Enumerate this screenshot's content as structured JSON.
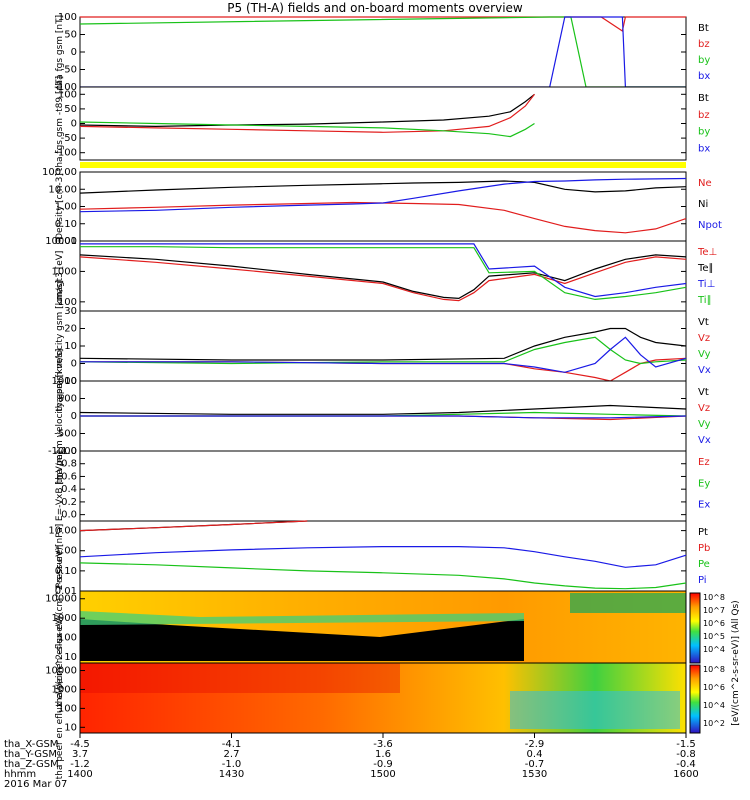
{
  "title": "P5 (TH-A) fields and on-board moments overview",
  "footer": {
    "date": "2016 Mar 07",
    "row_labels": [
      "tha_X-GSM",
      "tha_Y-GSM",
      "tha_Z-GSM",
      "hhmm"
    ],
    "rows": [
      [
        "-4.5",
        "-4.1",
        "-3.6",
        "-2.9",
        "-1.5"
      ],
      [
        "3.7",
        "2.7",
        "1.6",
        "0.4",
        "-0.8"
      ],
      [
        "-1.2",
        "-1.0",
        "-0.9",
        "-0.7",
        "-0.4"
      ],
      [
        "1400",
        "1430",
        "1500",
        "1530",
        "1600"
      ]
    ]
  },
  "colorbar": {
    "label": "[eV/(cm^2-s-sr-eV)] (All Qs)",
    "ticks_upper": [
      "10^8",
      "10^7",
      "10^6",
      "10^5",
      "10^4"
    ],
    "ticks_lower": [
      "10^8",
      "10^6",
      "10^4",
      "10^2"
    ]
  },
  "colors": {
    "black": "#000000",
    "red": "#e11d1d",
    "green": "#19c219",
    "blue": "#1a1ae6",
    "yellow": "#ffff00"
  },
  "chart_data": [
    {
      "id": "fgs",
      "type": "line",
      "ylabel": "tha fgs gsm [nT]",
      "ylim": [
        -100,
        100
      ],
      "ticks": [
        "100",
        "50",
        "0",
        "-50",
        "-100"
      ],
      "x_hours": [
        14.0,
        15.55,
        15.6,
        15.62,
        15.67,
        15.72,
        15.79,
        15.8,
        16.0
      ],
      "series": [
        {
          "name": "Bt",
          "color": "#000000",
          "values": [
            null,
            null,
            null,
            null,
            null,
            null,
            null,
            null,
            null
          ]
        },
        {
          "name": "bz",
          "color": "#e11d1d",
          "values": [
            100,
            100,
            100,
            100,
            100,
            100,
            60,
            100,
            100
          ]
        },
        {
          "name": "by",
          "color": "#19c219",
          "values": [
            80,
            100,
            100,
            100,
            -100,
            -100,
            -100,
            -100,
            -100
          ]
        },
        {
          "name": "bx",
          "color": "#1a1ae6",
          "values": [
            -100,
            -100,
            100,
            100,
            100,
            100,
            100,
            -100,
            -100
          ]
        }
      ]
    },
    {
      "id": "fgs-t89",
      "type": "line",
      "ylabel": "tha fgs gsm -t89 [nT]",
      "ylim": [
        -125,
        125
      ],
      "ticks": [
        "100",
        "50",
        "0",
        "-50",
        "-100"
      ],
      "x_hours": [
        14.0,
        14.25,
        14.5,
        14.75,
        15.0,
        15.2,
        15.35,
        15.42,
        15.47,
        15.5
      ],
      "series": [
        {
          "name": "Bt",
          "color": "#000000",
          "values": [
            -5,
            -10,
            -5,
            -2,
            5,
            12,
            25,
            40,
            75,
            100
          ]
        },
        {
          "name": "bz",
          "color": "#e11d1d",
          "values": [
            -10,
            -15,
            -20,
            -25,
            -30,
            -25,
            -10,
            20,
            60,
            100
          ]
        },
        {
          "name": "by",
          "color": "#19c219",
          "values": [
            5,
            0,
            -5,
            -10,
            -15,
            -25,
            -35,
            -45,
            -20,
            0
          ]
        },
        {
          "name": "bx",
          "color": "#1a1ae6",
          "values": [
            null,
            null,
            null,
            null,
            null,
            null,
            null,
            null,
            null,
            null
          ]
        }
      ]
    },
    {
      "id": "density",
      "type": "line",
      "ylabel": "Density [cm-3]",
      "log": true,
      "ylim": [
        0.01,
        100
      ],
      "ticks": [
        "100.00",
        "10.00",
        "1.00",
        "0.10",
        "0.01"
      ],
      "x_hours": [
        14.0,
        14.25,
        14.5,
        14.75,
        14.9,
        15.0,
        15.1,
        15.25,
        15.4,
        15.5,
        15.6,
        15.7,
        15.8,
        15.9,
        16.0
      ],
      "series": [
        {
          "name": "Ne",
          "color": "#e11d1d",
          "values": [
            0.7,
            0.9,
            1.2,
            1.5,
            1.7,
            1.6,
            1.5,
            1.3,
            0.6,
            0.2,
            0.07,
            0.04,
            0.03,
            0.05,
            0.2
          ]
        },
        {
          "name": "Ni",
          "color": "#000000",
          "values": [
            6,
            9,
            13,
            17,
            19,
            21,
            23,
            25,
            30,
            25,
            10,
            7,
            8,
            12,
            14
          ]
        },
        {
          "name": "Npot",
          "color": "#1a1ae6",
          "values": [
            0.5,
            0.6,
            0.9,
            1.2,
            1.4,
            1.6,
            3,
            8,
            20,
            28,
            30,
            35,
            38,
            40,
            42
          ]
        }
      ]
    },
    {
      "id": "temperature",
      "type": "line",
      "ylabel": "magt3 [eV]",
      "log": true,
      "ylim": [
        50,
        10000
      ],
      "ticks": [
        "10000",
        "1000",
        "100"
      ],
      "x_hours": [
        14.0,
        14.25,
        14.5,
        14.75,
        15.0,
        15.1,
        15.2,
        15.25,
        15.3,
        15.35,
        15.5,
        15.6,
        15.7,
        15.8,
        15.9,
        16.0
      ],
      "series": [
        {
          "name": "Te⊥",
          "color": "#e11d1d",
          "values": [
            3000,
            2000,
            1200,
            700,
            400,
            200,
            120,
            110,
            200,
            500,
            800,
            400,
            900,
            2000,
            3000,
            2500
          ]
        },
        {
          "name": "Te∥",
          "color": "#000000",
          "values": [
            3500,
            2500,
            1500,
            800,
            450,
            220,
            140,
            130,
            250,
            700,
            900,
            500,
            1200,
            2500,
            3500,
            3000
          ]
        },
        {
          "name": "Ti⊥",
          "color": "#1a1ae6",
          "values": [
            8000,
            8000,
            8000,
            8000,
            8000,
            8000,
            8000,
            8000,
            8000,
            1200,
            1500,
            300,
            150,
            200,
            300,
            400
          ]
        },
        {
          "name": "Ti∥",
          "color": "#19c219",
          "values": [
            6500,
            6500,
            6000,
            6000,
            6000,
            6000,
            6000,
            6000,
            6000,
            900,
            1000,
            200,
            120,
            150,
            200,
            300
          ]
        }
      ]
    },
    {
      "id": "peim-velocity",
      "type": "line",
      "ylabel": "tha peim velocity gsm [km/s]",
      "ylim": [
        -10,
        30
      ],
      "ticks": [
        "30",
        "20",
        "10",
        "0",
        "-10"
      ],
      "x_hours": [
        14.0,
        14.5,
        15.0,
        15.4,
        15.5,
        15.6,
        15.7,
        15.75,
        15.8,
        15.85,
        15.9,
        16.0
      ],
      "series": [
        {
          "name": "Vt",
          "color": "#000000",
          "values": [
            3,
            2,
            2,
            3,
            10,
            15,
            18,
            20,
            20,
            15,
            12,
            10
          ]
        },
        {
          "name": "Vz",
          "color": "#e11d1d",
          "values": [
            1,
            1,
            0,
            0,
            -3,
            -5,
            -8,
            -10,
            -5,
            0,
            2,
            3
          ]
        },
        {
          "name": "Vy",
          "color": "#19c219",
          "values": [
            1,
            0,
            1,
            1,
            8,
            12,
            15,
            8,
            2,
            0,
            1,
            2
          ]
        },
        {
          "name": "Vx",
          "color": "#1a1ae6",
          "values": [
            1,
            1,
            0,
            0,
            -2,
            -5,
            0,
            8,
            15,
            5,
            -2,
            3
          ]
        }
      ]
    },
    {
      "id": "peem-velocity",
      "type": "line",
      "ylabel": "tha peem velocity gsm [km/s]",
      "ylim": [
        -1000,
        1000
      ],
      "ticks": [
        "1000",
        "500",
        "0",
        "-500",
        "-1000"
      ],
      "x_hours": [
        14.0,
        14.5,
        15.0,
        15.25,
        15.5,
        15.75,
        16.0
      ],
      "series": [
        {
          "name": "Vt",
          "color": "#000000",
          "values": [
            100,
            50,
            50,
            100,
            200,
            300,
            200
          ]
        },
        {
          "name": "Vz",
          "color": "#e11d1d",
          "values": [
            0,
            0,
            0,
            0,
            -50,
            -100,
            0
          ]
        },
        {
          "name": "Vy",
          "color": "#19c219",
          "values": [
            0,
            0,
            0,
            50,
            100,
            50,
            0
          ]
        },
        {
          "name": "Vx",
          "color": "#1a1ae6",
          "values": [
            0,
            0,
            0,
            0,
            -50,
            -50,
            0
          ]
        }
      ]
    },
    {
      "id": "efield",
      "type": "line",
      "ylabel": "E=-VxB [mV/m]",
      "ylim": [
        -0.1,
        1.0
      ],
      "ticks": [
        "1.0",
        "0.8",
        "0.6",
        "0.4",
        "0.2",
        "0.0"
      ],
      "x_hours": [
        14.0,
        16.0
      ],
      "series": [
        {
          "name": "Ez",
          "color": "#e11d1d",
          "values": [
            null,
            null
          ]
        },
        {
          "name": "Ey",
          "color": "#19c219",
          "values": [
            null,
            null
          ]
        },
        {
          "name": "Ex",
          "color": "#1a1ae6",
          "values": [
            null,
            null
          ]
        }
      ]
    },
    {
      "id": "pressure",
      "type": "line",
      "ylabel": "Pressure [nPa]",
      "log": true,
      "ylim": [
        0.01,
        30
      ],
      "ticks": [
        "10.00",
        "1.00",
        "0.10",
        "0.01"
      ],
      "x_hours": [
        14.0,
        14.25,
        14.5,
        14.75,
        15.0,
        15.25,
        15.4,
        15.5,
        15.6,
        15.7,
        15.8,
        15.9,
        16.0
      ],
      "series": [
        {
          "name": "Pt",
          "color": "#000000",
          "values": [
            10,
            14,
            20,
            30,
            null,
            null,
            null,
            null,
            null,
            null,
            null,
            null,
            null
          ]
        },
        {
          "name": "Pb",
          "color": "#e11d1d",
          "values": [
            10,
            14,
            20,
            30,
            null,
            null,
            null,
            null,
            null,
            null,
            null,
            null,
            null
          ]
        },
        {
          "name": "Pe",
          "color": "#19c219",
          "values": [
            0.25,
            0.2,
            0.14,
            0.1,
            0.08,
            0.06,
            0.04,
            0.025,
            0.018,
            0.014,
            0.013,
            0.015,
            0.025
          ]
        },
        {
          "name": "Pi",
          "color": "#1a1ae6",
          "values": [
            0.5,
            0.8,
            1.1,
            1.4,
            1.6,
            1.6,
            1.4,
            0.9,
            0.5,
            0.3,
            0.15,
            0.2,
            0.6
          ]
        }
      ]
    },
    {
      "id": "peir-flux",
      "type": "heatmap",
      "ylabel": "tha peir en eflux eV/(cm^2-s-sr-eV)",
      "log": true,
      "ylim": [
        5,
        25000
      ],
      "ticks": [
        "10000",
        "1000",
        "100",
        "10"
      ]
    },
    {
      "id": "peer-flux",
      "type": "heatmap",
      "ylabel": "tha peer en eflux eV/(cm^2-s-sr-eV)",
      "log": true,
      "ylim": [
        5,
        25000
      ],
      "ticks": [
        "10000",
        "1000",
        "100",
        "10"
      ]
    }
  ]
}
